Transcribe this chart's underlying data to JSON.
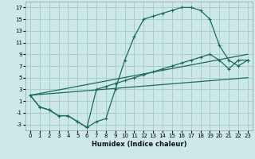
{
  "xlabel": "Humidex (Indice chaleur)",
  "bg_color": "#cce8e8",
  "grid_color": "#aacccc",
  "line_color": "#1a6b5a",
  "xlim": [
    -0.5,
    23.5
  ],
  "ylim": [
    -4,
    18
  ],
  "xticks": [
    0,
    1,
    2,
    3,
    4,
    5,
    6,
    7,
    8,
    9,
    10,
    11,
    12,
    13,
    14,
    15,
    16,
    17,
    18,
    19,
    20,
    21,
    22,
    23
  ],
  "yticks": [
    -3,
    -1,
    1,
    3,
    5,
    7,
    9,
    11,
    13,
    15,
    17
  ],
  "curve1_x": [
    0,
    1,
    2,
    3,
    4,
    5,
    6,
    7,
    8,
    9,
    10,
    11,
    12,
    13,
    14,
    15,
    16,
    17,
    18,
    19,
    20,
    21,
    22,
    23
  ],
  "curve1_y": [
    2,
    0,
    -0.5,
    -1.5,
    -1.5,
    -2.5,
    -3.5,
    -2.5,
    -2,
    3,
    8,
    12,
    15,
    15.5,
    16,
    16.5,
    17,
    17,
    16.5,
    15,
    10.5,
    8,
    7,
    8
  ],
  "curve2_x": [
    0,
    1,
    2,
    3,
    4,
    5,
    6,
    7,
    8,
    9,
    10,
    11,
    12,
    13,
    14,
    15,
    16,
    17,
    18,
    19,
    20,
    21,
    22,
    23
  ],
  "curve2_y": [
    2,
    0,
    -0.5,
    -1.5,
    -1.5,
    -2.5,
    -3.5,
    3,
    3.5,
    4,
    4.5,
    5,
    5.5,
    6,
    6.5,
    7,
    7.5,
    8,
    8.5,
    9,
    8,
    6.5,
    8,
    8
  ],
  "line1_x": [
    0,
    23
  ],
  "line1_y": [
    2,
    5
  ],
  "line2_x": [
    0,
    23
  ],
  "line2_y": [
    2,
    9
  ]
}
